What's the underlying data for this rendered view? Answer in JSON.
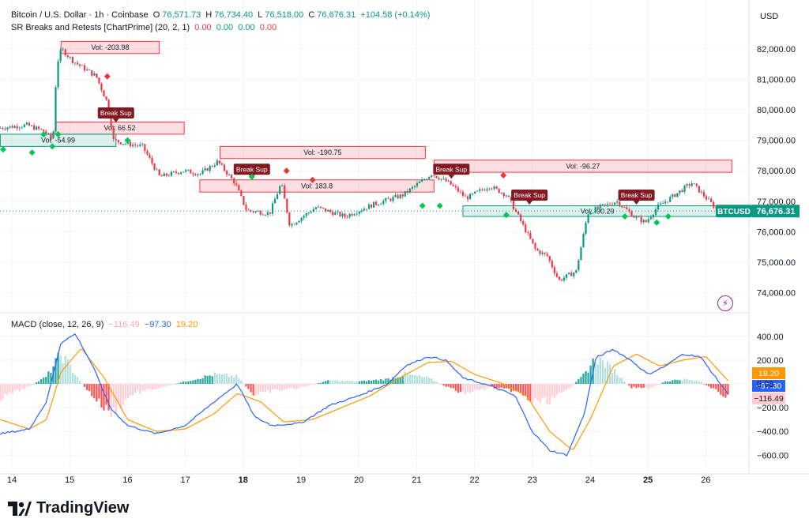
{
  "header": {
    "symbol": "Bitcoin / U.S. Dollar · 1h · Coinbase",
    "o_label": "O",
    "o": "76,571.73",
    "h_label": "H",
    "h": "76,734.40",
    "l_label": "L",
    "l": "76,518.00",
    "c_label": "C",
    "c": "76,676.31",
    "change": "+104.58 (+0.14%)"
  },
  "indicator": {
    "name": "SR Breaks and Retests [ChartPrime] (20, 2, 1)",
    "values": [
      "0.00",
      "0.00",
      "0.00",
      "0.00"
    ]
  },
  "macd_legend": {
    "name": "MACD (close, 12, 26, 9)",
    "hist": "−116.49",
    "macd": "−97.30",
    "signal": "19.20"
  },
  "currency": "USD",
  "price_tag": {
    "symbol": "BTCUSD",
    "value": "76,676.31"
  },
  "brand": "TradingView",
  "colors": {
    "up": "#089981",
    "down": "#f23645",
    "macd": "#2962ff",
    "signal": "#ff9800"
  },
  "chart_data": [
    {
      "type": "candlestick",
      "price_axis": {
        "ticks": [
          "82,000.00",
          "81,000.00",
          "80,000.00",
          "79,000.00",
          "78,000.00",
          "77,000.00",
          "76,000.00",
          "75,000.00",
          "74,000.00"
        ],
        "ylim": [
          73500,
          82600
        ]
      },
      "x_axis": {
        "ticks": [
          "14",
          "15",
          "16",
          "17",
          "18",
          "19",
          "20",
          "21",
          "22",
          "23",
          "24",
          "25",
          "26"
        ]
      },
      "path_anchors": [
        [
          13.8,
          79400
        ],
        [
          14.3,
          79500
        ],
        [
          14.6,
          79300
        ],
        [
          14.75,
          79000
        ],
        [
          14.82,
          81500
        ],
        [
          14.9,
          82000
        ],
        [
          15.1,
          81600
        ],
        [
          15.5,
          81100
        ],
        [
          15.7,
          80200
        ],
        [
          15.8,
          79000
        ],
        [
          16.0,
          78900
        ],
        [
          16.3,
          78800
        ],
        [
          16.6,
          77800
        ],
        [
          17.0,
          78000
        ],
        [
          17.3,
          77900
        ],
        [
          17.6,
          78300
        ],
        [
          17.9,
          77600
        ],
        [
          18.1,
          76700
        ],
        [
          18.5,
          76600
        ],
        [
          18.7,
          77600
        ],
        [
          18.85,
          76200
        ],
        [
          19.3,
          76800
        ],
        [
          19.8,
          76500
        ],
        [
          20.3,
          76900
        ],
        [
          20.8,
          77200
        ],
        [
          21.3,
          77900
        ],
        [
          21.6,
          77600
        ],
        [
          21.9,
          77100
        ],
        [
          22.3,
          77500
        ],
        [
          22.6,
          77200
        ],
        [
          22.8,
          76500
        ],
        [
          23.1,
          75400
        ],
        [
          23.3,
          75200
        ],
        [
          23.5,
          74400
        ],
        [
          23.8,
          74700
        ],
        [
          24.0,
          76600
        ],
        [
          24.2,
          76800
        ],
        [
          24.5,
          77000
        ],
        [
          24.8,
          76500
        ],
        [
          25.0,
          76300
        ],
        [
          25.2,
          76800
        ],
        [
          25.5,
          77200
        ],
        [
          25.8,
          77600
        ],
        [
          26.0,
          77200
        ],
        [
          26.25,
          76700
        ]
      ],
      "sr_zones": [
        {
          "kind": "resistance",
          "label": "Vol: -203.98",
          "x": [
            14.85,
            16.55
          ],
          "y": [
            82250,
            81850
          ]
        },
        {
          "kind": "resistance",
          "label": "Vol: 66.52",
          "x": [
            14.75,
            16.98
          ],
          "y": [
            79600,
            79200
          ]
        },
        {
          "kind": "support",
          "label": "Vol: -54.99",
          "x": [
            13.8,
            15.8
          ],
          "y": [
            79200,
            78800
          ]
        },
        {
          "kind": "resistance",
          "label": "Vol: -190.75",
          "x": [
            17.6,
            21.15
          ],
          "y": [
            78800,
            78400
          ]
        },
        {
          "kind": "resistance",
          "label": "Vol: 183.8",
          "x": [
            17.25,
            21.3
          ],
          "y": [
            77700,
            77300
          ]
        },
        {
          "kind": "resistance",
          "label": "Vol: -96.27",
          "x": [
            21.3,
            26.45
          ],
          "y": [
            78350,
            77950
          ]
        },
        {
          "kind": "support",
          "label": "Vol: -90.29",
          "x": [
            21.8,
            26.45
          ],
          "y": [
            76850,
            76500
          ]
        }
      ],
      "break_labels": [
        {
          "text": "Break Sup",
          "x": 15.8,
          "y": 79900
        },
        {
          "text": "Break Sup",
          "x": 18.15,
          "y": 78050
        },
        {
          "text": "Break Sup",
          "x": 21.6,
          "y": 78050
        },
        {
          "text": "Break Sup",
          "x": 22.95,
          "y": 77200
        },
        {
          "text": "Break Sup",
          "x": 24.8,
          "y": 77200
        }
      ],
      "diamonds": [
        {
          "kind": "up",
          "x": 13.85,
          "y": 78700
        },
        {
          "kind": "up",
          "x": 14.35,
          "y": 78600
        },
        {
          "kind": "up",
          "x": 14.55,
          "y": 79200
        },
        {
          "kind": "up",
          "x": 14.7,
          "y": 78800
        },
        {
          "kind": "up",
          "x": 14.8,
          "y": 79200
        },
        {
          "kind": "down",
          "x": 15.65,
          "y": 81100
        },
        {
          "kind": "up",
          "x": 16.0,
          "y": 79000
        },
        {
          "kind": "up",
          "x": 18.15,
          "y": 77800
        },
        {
          "kind": "down",
          "x": 18.75,
          "y": 78000
        },
        {
          "kind": "down",
          "x": 19.2,
          "y": 77700
        },
        {
          "kind": "up",
          "x": 21.1,
          "y": 76850
        },
        {
          "kind": "up",
          "x": 21.4,
          "y": 76850
        },
        {
          "kind": "down",
          "x": 22.5,
          "y": 77850
        },
        {
          "kind": "up",
          "x": 22.55,
          "y": 76550
        },
        {
          "kind": "up",
          "x": 24.6,
          "y": 76500
        },
        {
          "kind": "up",
          "x": 25.15,
          "y": 76300
        },
        {
          "kind": "up",
          "x": 25.35,
          "y": 76500
        }
      ]
    },
    {
      "type": "macd",
      "axis": {
        "ticks": [
          "400.00",
          "200.00",
          "0.00",
          "−200.00",
          "−400.00",
          "−600.00"
        ],
        "ylim": [
          -660,
          480
        ]
      },
      "macd_anchors": [
        [
          13.8,
          -420
        ],
        [
          14.3,
          -380
        ],
        [
          14.6,
          -150
        ],
        [
          14.85,
          350
        ],
        [
          15.1,
          420
        ],
        [
          15.4,
          150
        ],
        [
          15.7,
          -200
        ],
        [
          16.0,
          -350
        ],
        [
          16.5,
          -420
        ],
        [
          17.0,
          -350
        ],
        [
          17.5,
          -150
        ],
        [
          17.9,
          0
        ],
        [
          18.2,
          -280
        ],
        [
          18.5,
          -350
        ],
        [
          19.0,
          -330
        ],
        [
          19.5,
          -180
        ],
        [
          20.0,
          -100
        ],
        [
          20.5,
          0
        ],
        [
          20.8,
          150
        ],
        [
          21.2,
          230
        ],
        [
          21.5,
          200
        ],
        [
          21.8,
          50
        ],
        [
          22.3,
          -20
        ],
        [
          22.7,
          -100
        ],
        [
          23.0,
          -400
        ],
        [
          23.3,
          -560
        ],
        [
          23.6,
          -600
        ],
        [
          23.9,
          -250
        ],
        [
          24.1,
          220
        ],
        [
          24.4,
          290
        ],
        [
          24.7,
          200
        ],
        [
          25.0,
          80
        ],
        [
          25.3,
          150
        ],
        [
          25.6,
          250
        ],
        [
          25.9,
          230
        ],
        [
          26.1,
          100
        ],
        [
          26.4,
          -97
        ]
      ],
      "signal_anchors": [
        [
          13.8,
          -300
        ],
        [
          14.3,
          -380
        ],
        [
          14.6,
          -300
        ],
        [
          14.85,
          100
        ],
        [
          15.2,
          300
        ],
        [
          15.6,
          50
        ],
        [
          16.0,
          -300
        ],
        [
          16.5,
          -400
        ],
        [
          17.0,
          -380
        ],
        [
          17.5,
          -250
        ],
        [
          17.9,
          -80
        ],
        [
          18.3,
          -150
        ],
        [
          18.7,
          -320
        ],
        [
          19.2,
          -300
        ],
        [
          19.7,
          -200
        ],
        [
          20.2,
          -100
        ],
        [
          20.7,
          50
        ],
        [
          21.2,
          180
        ],
        [
          21.6,
          190
        ],
        [
          22.0,
          80
        ],
        [
          22.5,
          0
        ],
        [
          22.9,
          -100
        ],
        [
          23.3,
          -400
        ],
        [
          23.7,
          -560
        ],
        [
          24.0,
          -300
        ],
        [
          24.4,
          150
        ],
        [
          24.8,
          250
        ],
        [
          25.2,
          150
        ],
        [
          25.6,
          200
        ],
        [
          26.0,
          230
        ],
        [
          26.4,
          19
        ]
      ],
      "histogram_anchors": [
        [
          13.8,
          -120
        ],
        [
          14.3,
          -20
        ],
        [
          14.6,
          60
        ],
        [
          14.85,
          250
        ],
        [
          15.1,
          80
        ],
        [
          15.3,
          -50
        ],
        [
          15.7,
          -250
        ],
        [
          16.1,
          -80
        ],
        [
          16.5,
          -40
        ],
        [
          17.0,
          20
        ],
        [
          17.5,
          80
        ],
        [
          17.9,
          60
        ],
        [
          18.2,
          -100
        ],
        [
          18.5,
          -60
        ],
        [
          19.0,
          -30
        ],
        [
          19.5,
          30
        ],
        [
          20.0,
          20
        ],
        [
          20.5,
          40
        ],
        [
          20.8,
          80
        ],
        [
          21.2,
          50
        ],
        [
          21.5,
          -20
        ],
        [
          21.8,
          -80
        ],
        [
          22.3,
          -30
        ],
        [
          22.7,
          -60
        ],
        [
          23.0,
          -150
        ],
        [
          23.3,
          -140
        ],
        [
          23.6,
          -60
        ],
        [
          23.9,
          80
        ],
        [
          24.1,
          220
        ],
        [
          24.4,
          120
        ],
        [
          24.7,
          -30
        ],
        [
          25.0,
          -40
        ],
        [
          25.3,
          20
        ],
        [
          25.6,
          40
        ],
        [
          25.9,
          20
        ],
        [
          26.1,
          -40
        ],
        [
          26.4,
          -116
        ]
      ]
    }
  ]
}
